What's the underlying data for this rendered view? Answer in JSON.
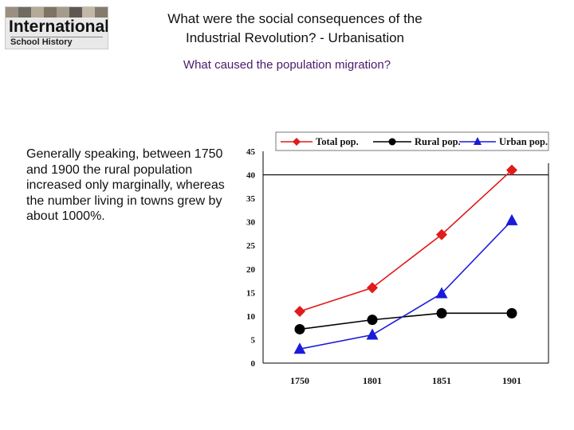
{
  "logo": {
    "line1": "International",
    "line2": "School History"
  },
  "header": {
    "title_line1": "What were the social consequences of the",
    "title_line2": "Industrial Revolution? - Urbanisation",
    "subtitle": "What caused the population migration?"
  },
  "body": {
    "text": "Generally speaking, between 1750 and 1900 the rural population increased only marginally, whereas the number living in towns grew by about 1000%."
  },
  "chart_data": {
    "type": "line",
    "categories": [
      "1750",
      "1801",
      "1851",
      "1901"
    ],
    "series": [
      {
        "name": "Total pop.",
        "values": [
          11,
          16,
          27.3,
          41
        ],
        "color": "#e01b1b",
        "marker": "diamond"
      },
      {
        "name": "Rural pop.",
        "values": [
          7.2,
          9.2,
          10.6,
          10.6
        ],
        "color": "#000000",
        "marker": "circle"
      },
      {
        "name": "Urban pop.",
        "values": [
          3,
          6,
          14.8,
          30.3
        ],
        "color": "#1a1adb",
        "marker": "triangle"
      }
    ],
    "yticks": [
      0,
      5,
      10,
      15,
      20,
      25,
      30,
      35,
      40,
      45
    ],
    "ylim": [
      0,
      45
    ],
    "grid": false,
    "legend": "top"
  }
}
